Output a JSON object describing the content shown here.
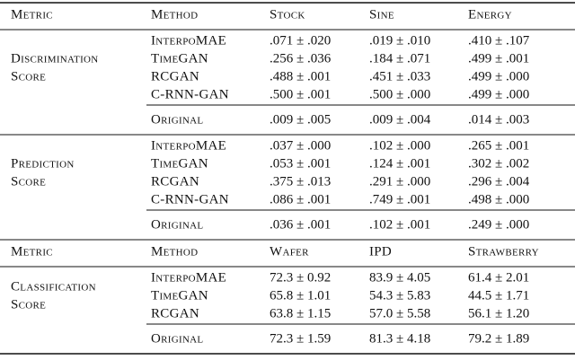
{
  "blocks": [
    {
      "header": [
        "Metric",
        "Method",
        "Stock",
        "Sine",
        "Energy"
      ],
      "sections": [
        {
          "metric": [
            "Discrimination",
            "Score"
          ],
          "rows": [
            {
              "method": "InterpoMAE",
              "cells": [
                ".071 ± .020",
                ".019 ± .010",
                ".410 ± .107"
              ]
            },
            {
              "method": "TimeGAN",
              "cells": [
                ".256 ± .036",
                ".184 ± .071",
                ".499 ± .001"
              ]
            },
            {
              "method": "RCGAN",
              "cells": [
                ".488 ± .001",
                ".451 ± .033",
                ".499 ± .000"
              ]
            },
            {
              "method": "C-RNN-GAN",
              "cells": [
                ".500 ± .001",
                ".500 ± .000",
                ".499 ± .000"
              ]
            }
          ],
          "original": {
            "method": "Original",
            "cells": [
              ".009 ± .005",
              ".009 ± .004",
              ".014 ± .003"
            ]
          }
        },
        {
          "metric": [
            "Prediction",
            "Score"
          ],
          "rows": [
            {
              "method": "InterpoMAE",
              "cells": [
                ".037 ± .000",
                ".102 ± .000",
                ".265 ± .001"
              ]
            },
            {
              "method": "TimeGAN",
              "cells": [
                ".053 ± .001",
                ".124 ± .001",
                ".302 ± .002"
              ]
            },
            {
              "method": "RCGAN",
              "cells": [
                ".375 ± .013",
                ".291 ± .000",
                ".296 ± .004"
              ]
            },
            {
              "method": "C-RNN-GAN",
              "cells": [
                ".086 ± .001",
                ".749 ± .001",
                ".498 ± .000"
              ]
            }
          ],
          "original": {
            "method": "Original",
            "cells": [
              ".036 ± .001",
              ".102 ± .001",
              ".249 ± .000"
            ]
          }
        }
      ]
    },
    {
      "header": [
        "Metric",
        "Method",
        "Wafer",
        "IPD",
        "Strawberry"
      ],
      "sections": [
        {
          "metric": [
            "Classification",
            "Score"
          ],
          "rows": [
            {
              "method": "InterpoMAE",
              "cells": [
                "72.3 ± 0.92",
                "83.9 ± 4.05",
                "61.4 ± 2.01"
              ]
            },
            {
              "method": "TimeGAN",
              "cells": [
                "65.8 ± 1.01",
                "54.3 ± 5.83",
                "44.5 ± 1.71"
              ]
            },
            {
              "method": "RCGAN",
              "cells": [
                "63.8 ± 1.15",
                "57.0 ± 5.58",
                "56.1 ± 1.20"
              ]
            }
          ],
          "original": {
            "method": "Original",
            "cells": [
              "72.3 ± 1.59",
              "81.3 ± 4.18",
              "79.2 ± 1.89"
            ]
          }
        }
      ]
    }
  ]
}
